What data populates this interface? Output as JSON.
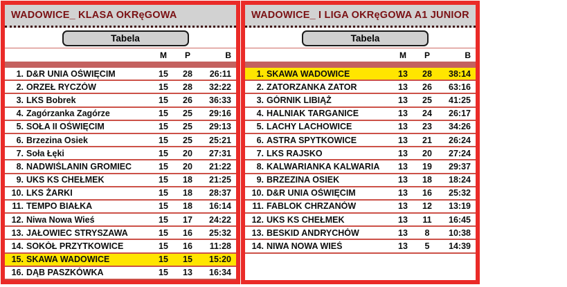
{
  "colors": {
    "border_red": "#ea2b28",
    "header_bg": "#d2d2d2",
    "title_maroon": "#7a1114",
    "band_salmon": "#c4615f",
    "row_separator": "#cc5148",
    "highlight_yellow": "#ffe500",
    "button_bg": "#d0d0d0"
  },
  "panels": [
    {
      "title": "WADOWICE_ KLASA OKRęGOWA",
      "button_label": "Tabela",
      "columns": {
        "m": "M",
        "p": "P",
        "b": "B"
      },
      "rows": [
        {
          "pos": "1.",
          "team": "D&R UNIA OŚWIĘCIM",
          "m": "15",
          "p": "28",
          "b": "26:11",
          "highlight": false
        },
        {
          "pos": "2.",
          "team": "ORZEŁ RYCZÓW",
          "m": "15",
          "p": "28",
          "b": "32:22",
          "highlight": false
        },
        {
          "pos": "3.",
          "team": "LKS Bobrek",
          "m": "15",
          "p": "26",
          "b": "36:33",
          "highlight": false
        },
        {
          "pos": "4.",
          "team": "Zagórzanka Zagórze",
          "m": "15",
          "p": "25",
          "b": "29:16",
          "highlight": false
        },
        {
          "pos": "5.",
          "team": "SOŁA II OŚWIĘCIM",
          "m": "15",
          "p": "25",
          "b": "29:13",
          "highlight": false
        },
        {
          "pos": "6.",
          "team": "Brzezina Osiek",
          "m": "15",
          "p": "25",
          "b": "25:21",
          "highlight": false
        },
        {
          "pos": "7.",
          "team": "Soła Łęki",
          "m": "15",
          "p": "20",
          "b": "27:31",
          "highlight": false
        },
        {
          "pos": "8.",
          "team": "NADWIŚLANIN GROMIEC",
          "m": "15",
          "p": "20",
          "b": "21:22",
          "highlight": false
        },
        {
          "pos": "9.",
          "team": "UKS KS CHEŁMEK",
          "m": "15",
          "p": "18",
          "b": "21:25",
          "highlight": false
        },
        {
          "pos": "10.",
          "team": "LKS ŻARKI",
          "m": "15",
          "p": "18",
          "b": "28:37",
          "highlight": false
        },
        {
          "pos": "11.",
          "team": "TEMPO BIAŁKA",
          "m": "15",
          "p": "18",
          "b": "16:14",
          "highlight": false
        },
        {
          "pos": "12.",
          "team": "Niwa Nowa Wieś",
          "m": "15",
          "p": "17",
          "b": "24:22",
          "highlight": false
        },
        {
          "pos": "13.",
          "team": "JAŁOWIEC STRYSZAWA",
          "m": "15",
          "p": "16",
          "b": "25:32",
          "highlight": false
        },
        {
          "pos": "14.",
          "team": "SOKÓŁ PRZYTKOWICE",
          "m": "15",
          "p": "16",
          "b": "11:28",
          "highlight": false
        },
        {
          "pos": "15.",
          "team": "SKAWA WADOWICE",
          "m": "15",
          "p": "15",
          "b": "15:20",
          "highlight": true
        },
        {
          "pos": "16.",
          "team": "DĄB PASZKÓWKA",
          "m": "15",
          "p": "13",
          "b": "16:34",
          "highlight": false
        }
      ]
    },
    {
      "title": "WADOWICE_ I LIGA OKRęGOWA A1 JUNIOR",
      "button_label": "Tabela",
      "columns": {
        "m": "M",
        "p": "P",
        "b": "B"
      },
      "rows": [
        {
          "pos": "1.",
          "team": "SKAWA WADOWICE",
          "m": "13",
          "p": "28",
          "b": "38:14",
          "highlight": true
        },
        {
          "pos": "2.",
          "team": "ZATORZANKA ZATOR",
          "m": "13",
          "p": "26",
          "b": "63:16",
          "highlight": false
        },
        {
          "pos": "3.",
          "team": "GÓRNIK LIBIĄŻ",
          "m": "13",
          "p": "25",
          "b": "41:25",
          "highlight": false
        },
        {
          "pos": "4.",
          "team": "HALNIAK TARGANICE",
          "m": "13",
          "p": "24",
          "b": "26:17",
          "highlight": false
        },
        {
          "pos": "5.",
          "team": "LACHY LACHOWICE",
          "m": "13",
          "p": "23",
          "b": "34:26",
          "highlight": false
        },
        {
          "pos": "6.",
          "team": "ASTRA SPYTKOWICE",
          "m": "13",
          "p": "21",
          "b": "26:24",
          "highlight": false
        },
        {
          "pos": "7.",
          "team": "LKS RAJSKO",
          "m": "13",
          "p": "20",
          "b": "27:24",
          "highlight": false
        },
        {
          "pos": "8.",
          "team": "KALWARIANKA KALWARIA",
          "m": "13",
          "p": "19",
          "b": "29:37",
          "highlight": false
        },
        {
          "pos": "9.",
          "team": "BRZEZINA OSIEK",
          "m": "13",
          "p": "18",
          "b": "18:24",
          "highlight": false
        },
        {
          "pos": "10.",
          "team": "D&R UNIA OŚWIĘCIM",
          "m": "13",
          "p": "16",
          "b": "25:32",
          "highlight": false
        },
        {
          "pos": "11.",
          "team": "FABLOK CHRZANÓW",
          "m": "13",
          "p": "12",
          "b": "13:19",
          "highlight": false
        },
        {
          "pos": "12.",
          "team": "UKS KS CHEŁMEK",
          "m": "13",
          "p": "11",
          "b": "16:45",
          "highlight": false
        },
        {
          "pos": "13.",
          "team": "BESKID ANDRYCHÓW",
          "m": "13",
          "p": "8",
          "b": "10:38",
          "highlight": false
        },
        {
          "pos": "14.",
          "team": "NIWA NOWA WIEŚ",
          "m": "13",
          "p": "5",
          "b": "14:39",
          "highlight": false
        }
      ]
    }
  ]
}
